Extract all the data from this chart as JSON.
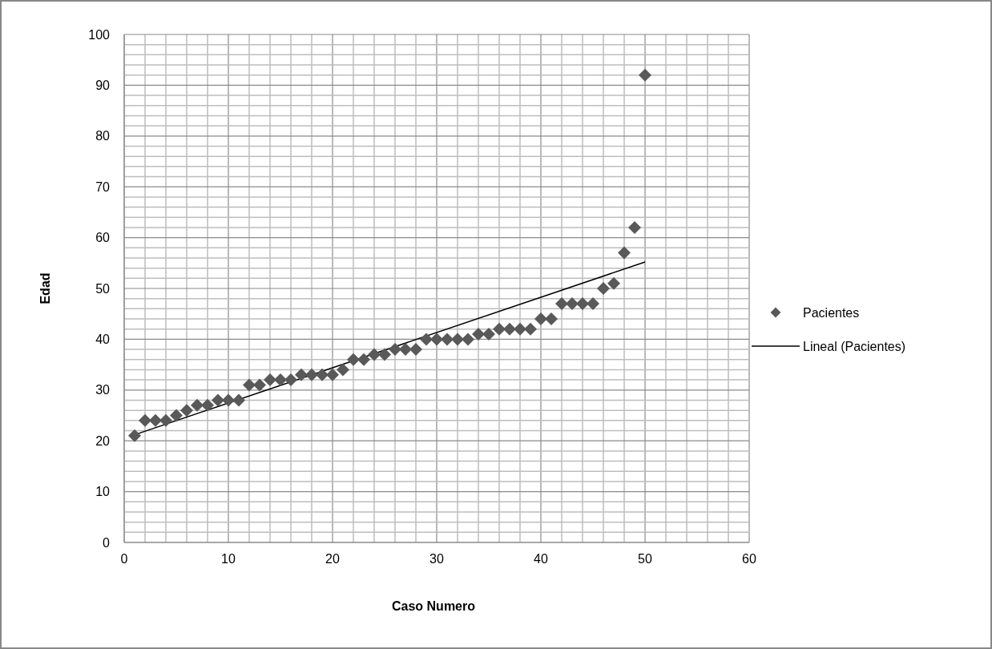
{
  "chart_data": {
    "type": "scatter",
    "xlabel": "Caso Numero",
    "ylabel": "Edad",
    "xlim": [
      0,
      60
    ],
    "ylim": [
      0,
      100
    ],
    "xticks": [
      0,
      {
        "value": 2,
        "label": null
      },
      {
        "value": 4,
        "label": null
      },
      {
        "value": 6,
        "label": null
      },
      {
        "value": 8,
        "label": null
      },
      10,
      {
        "value": 12,
        "label": null
      },
      {
        "value": 14,
        "label": null
      },
      {
        "value": 16,
        "label": null
      },
      {
        "value": 18,
        "label": null
      },
      20,
      {
        "value": 22,
        "label": null
      },
      {
        "value": 24,
        "label": null
      },
      {
        "value": 26,
        "label": null
      },
      {
        "value": 28,
        "label": null
      },
      30,
      {
        "value": 32,
        "label": null
      },
      {
        "value": 34,
        "label": null
      },
      {
        "value": 36,
        "label": null
      },
      {
        "value": 38,
        "label": null
      },
      40,
      {
        "value": 42,
        "label": null
      },
      {
        "value": 44,
        "label": null
      },
      {
        "value": 46,
        "label": null
      },
      {
        "value": 48,
        "label": null
      },
      50,
      {
        "value": 52,
        "label": null
      },
      {
        "value": 54,
        "label": null
      },
      {
        "value": 56,
        "label": null
      },
      {
        "value": 58,
        "label": null
      },
      60
    ],
    "yticks": [
      0,
      {
        "value": 2,
        "label": null
      },
      {
        "value": 4,
        "label": null
      },
      {
        "value": 6,
        "label": null
      },
      {
        "value": 8,
        "label": null
      },
      10,
      {
        "value": 12,
        "label": null
      },
      {
        "value": 14,
        "label": null
      },
      {
        "value": 16,
        "label": null
      },
      {
        "value": 18,
        "label": null
      },
      20,
      {
        "value": 22,
        "label": null
      },
      {
        "value": 24,
        "label": null
      },
      {
        "value": 26,
        "label": null
      },
      {
        "value": 28,
        "label": null
      },
      30,
      {
        "value": 32,
        "label": null
      },
      {
        "value": 34,
        "label": null
      },
      {
        "value": 36,
        "label": null
      },
      {
        "value": 38,
        "label": null
      },
      40,
      {
        "value": 42,
        "label": null
      },
      {
        "value": 44,
        "label": null
      },
      {
        "value": 46,
        "label": null
      },
      {
        "value": 48,
        "label": null
      },
      50,
      {
        "value": 52,
        "label": null
      },
      {
        "value": 54,
        "label": null
      },
      {
        "value": 56,
        "label": null
      },
      {
        "value": 58,
        "label": null
      },
      60,
      {
        "value": 62,
        "label": null
      },
      {
        "value": 64,
        "label": null
      },
      {
        "value": 66,
        "label": null
      },
      {
        "value": 68,
        "label": null
      },
      70,
      {
        "value": 72,
        "label": null
      },
      {
        "value": 74,
        "label": null
      },
      {
        "value": 76,
        "label": null
      },
      {
        "value": 78,
        "label": null
      },
      80,
      {
        "value": 82,
        "label": null
      },
      {
        "value": 84,
        "label": null
      },
      {
        "value": 86,
        "label": null
      },
      {
        "value": 88,
        "label": null
      },
      90,
      {
        "value": 92,
        "label": null
      },
      {
        "value": 94,
        "label": null
      },
      {
        "value": 96,
        "label": null
      },
      {
        "value": 98,
        "label": null
      },
      100
    ],
    "grid": true,
    "legend": "right",
    "series": [
      {
        "name": "Pacientes",
        "marker": "diamond",
        "color": "#595959",
        "x": [
          1,
          2,
          3,
          4,
          5,
          6,
          7,
          8,
          9,
          10,
          11,
          12,
          13,
          14,
          15,
          16,
          17,
          18,
          19,
          20,
          21,
          22,
          23,
          24,
          25,
          26,
          27,
          28,
          29,
          30,
          31,
          32,
          33,
          34,
          35,
          36,
          37,
          38,
          39,
          40,
          41,
          42,
          43,
          44,
          45,
          46,
          47,
          48,
          49,
          50
        ],
        "values": [
          21,
          24,
          24,
          24,
          25,
          26,
          27,
          27,
          28,
          28,
          28,
          31,
          31,
          32,
          32,
          32,
          33,
          33,
          33,
          33,
          34,
          36,
          36,
          37,
          37,
          38,
          38,
          38,
          40,
          40,
          40,
          40,
          40,
          41,
          41,
          42,
          42,
          42,
          42,
          44,
          44,
          47,
          47,
          47,
          47,
          50,
          51,
          57,
          62,
          92
        ]
      },
      {
        "name": "Lineal (Pacientes)",
        "type": "line",
        "marker": "none",
        "color": "#000000",
        "x": [
          1,
          50
        ],
        "values": [
          21.2,
          55.2
        ]
      }
    ]
  }
}
